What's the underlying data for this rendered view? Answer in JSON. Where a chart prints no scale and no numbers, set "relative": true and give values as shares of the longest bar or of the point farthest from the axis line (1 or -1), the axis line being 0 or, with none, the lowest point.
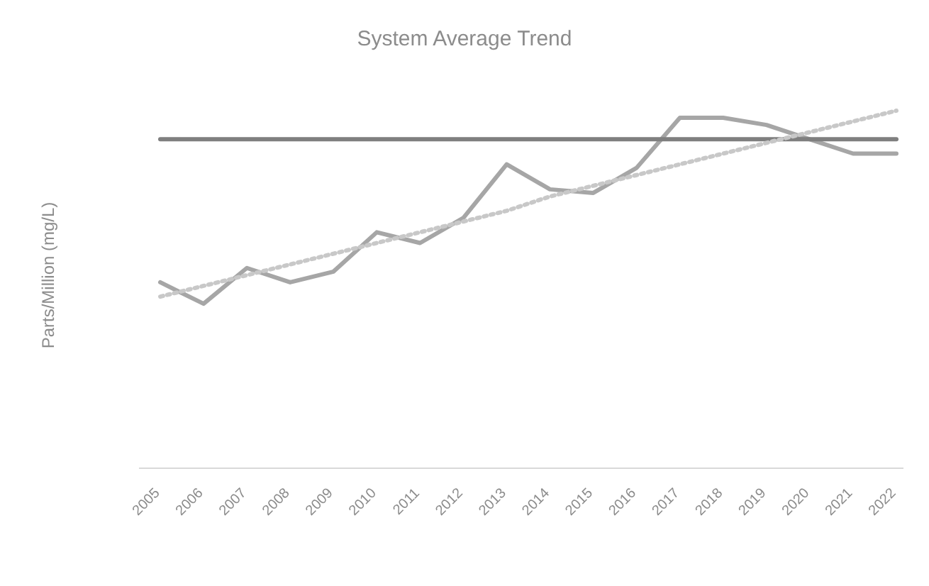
{
  "chart_data": {
    "type": "line",
    "title": "System Average Trend",
    "ylabel": "Parts/Million (mg/L)",
    "relative": true,
    "marker": "none",
    "categories": [
      "2005",
      "2006",
      "2007",
      "2008",
      "2009",
      "2010",
      "2011",
      "2012",
      "2013",
      "2014",
      "2015",
      "2016",
      "2017",
      "2018",
      "2019",
      "2020",
      "2021",
      "2022"
    ],
    "series": [
      {
        "color": "#a6a6a6",
        "values": [
          0.52,
          0.46,
          0.56,
          0.52,
          0.55,
          0.66,
          0.63,
          0.7,
          0.85,
          0.78,
          0.77,
          0.84,
          0.98,
          0.98,
          0.96,
          0.92,
          0.88,
          0.88
        ]
      },
      {
        "color": "#7f7f7f",
        "values": [
          0.92,
          0.92,
          0.92,
          0.92,
          0.92,
          0.92,
          0.92,
          0.92,
          0.92,
          0.92,
          0.92,
          0.92,
          0.92,
          0.92,
          0.92,
          0.92,
          0.92,
          0.92
        ]
      },
      {
        "color": "#c8c8c8",
        "line_style": "dotted",
        "values": [
          0.48,
          0.51,
          0.54,
          0.57,
          0.6,
          0.63,
          0.66,
          0.69,
          0.72,
          0.76,
          0.79,
          0.82,
          0.85,
          0.88,
          0.91,
          0.94,
          0.97,
          1.0
        ]
      }
    ]
  }
}
